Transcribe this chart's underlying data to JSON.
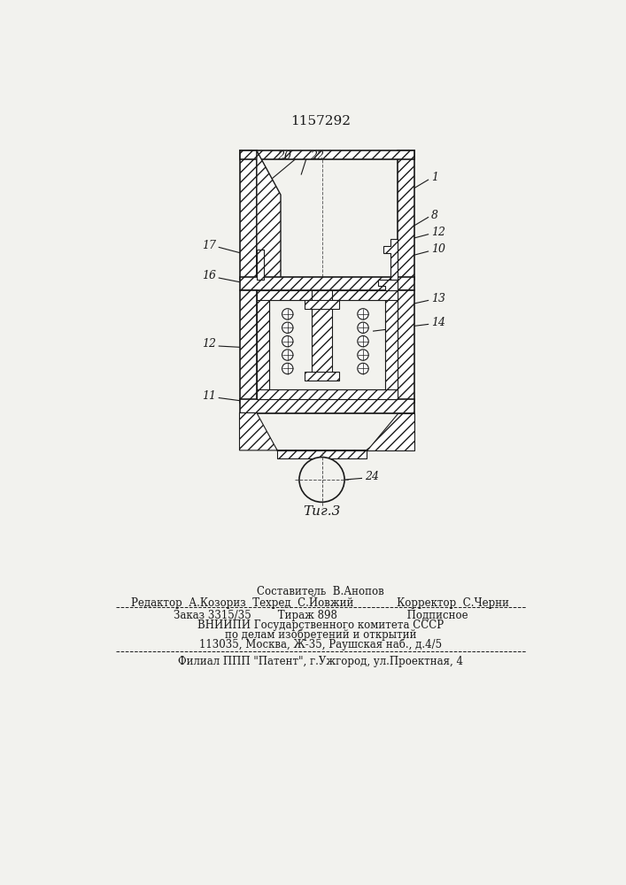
{
  "bg_color": "#f2f2ee",
  "lc": "#1a1a1a",
  "title": "1157292",
  "fig_label": "Τиг.3",
  "footer_line1": "Составитель  В.Анопов",
  "footer_line2": "Редактор  А.Козориз  Техред  С.Йовжий             Корректор  С.Черни",
  "footer_line3": "Заказ 3315/35        Тираж 898                     Подписное",
  "footer_line4": "ВНИИПИ Государственного комитета СССР",
  "footer_line5": "по делам изобретений и открытий",
  "footer_line6": "113035, Москва, Ж-35, Раушская наб., д.4/5",
  "footer_line7": "Филиал ППП \"Патент\", г.Ужгород, ул.Проектная, 4"
}
